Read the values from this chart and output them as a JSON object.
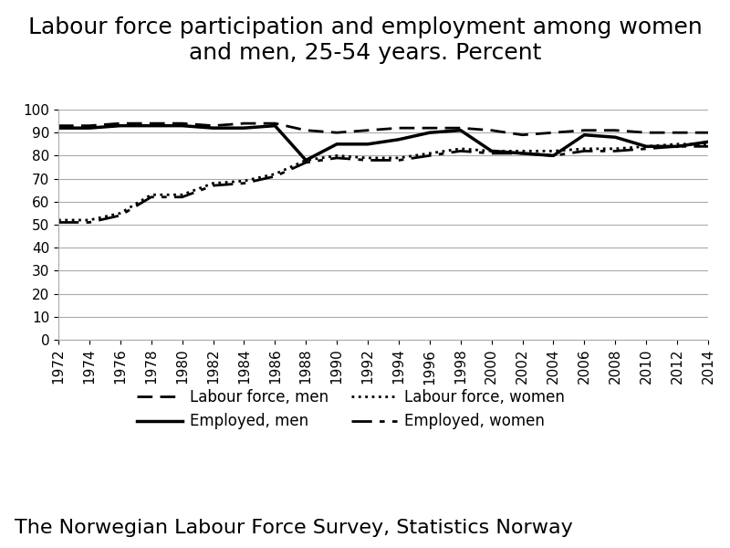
{
  "title_line1": "Labour force participation and employment among women",
  "title_line2": "and men, 25-54 years. Percent",
  "footer": "The Norwegian Labour Force Survey, Statistics Norway",
  "years": [
    1972,
    1974,
    1976,
    1978,
    1980,
    1982,
    1984,
    1986,
    1988,
    1990,
    1992,
    1994,
    1996,
    1998,
    2000,
    2002,
    2004,
    2006,
    2008,
    2010,
    2012,
    2014
  ],
  "labour_force_men": [
    93,
    93,
    94,
    94,
    94,
    93,
    94,
    94,
    91,
    90,
    91,
    92,
    92,
    92,
    91,
    89,
    90,
    91,
    91,
    90,
    90,
    90
  ],
  "employed_men": [
    92,
    92,
    93,
    93,
    93,
    92,
    92,
    93,
    78,
    85,
    85,
    87,
    90,
    91,
    82,
    81,
    80,
    89,
    88,
    84,
    84,
    86
  ],
  "labour_force_women": [
    52,
    52,
    55,
    63,
    63,
    68,
    69,
    72,
    78,
    80,
    79,
    79,
    81,
    83,
    82,
    82,
    82,
    83,
    83,
    84,
    85,
    85
  ],
  "employed_women": [
    51,
    51,
    54,
    62,
    62,
    67,
    68,
    71,
    77,
    79,
    78,
    78,
    80,
    82,
    81,
    81,
    80,
    82,
    82,
    83,
    84,
    84
  ],
  "ylim": [
    0,
    100
  ],
  "yticks": [
    0,
    10,
    20,
    30,
    40,
    50,
    60,
    70,
    80,
    90,
    100
  ],
  "bg_color": "#ffffff",
  "plot_bg_color": "#ffffff",
  "grid_color": "#aaaaaa",
  "line_color": "#000000",
  "title_fontsize": 18,
  "tick_fontsize": 11,
  "legend_fontsize": 12,
  "footer_fontsize": 16
}
